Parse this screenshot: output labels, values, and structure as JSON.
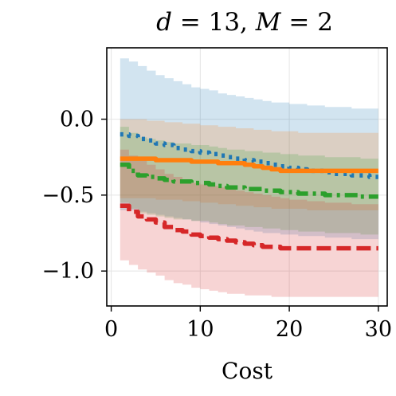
{
  "chart_data": {
    "type": "line",
    "title_parts": {
      "var1": "d",
      "eq1": " = 13, ",
      "var2": "M",
      "eq2": " = 2"
    },
    "xlabel": "Cost",
    "ylabel": "",
    "xlim": [
      -0.5,
      31.0
    ],
    "ylim": [
      -1.23,
      0.47
    ],
    "xticks": [
      0,
      10,
      20,
      30
    ],
    "xtick_labels": [
      "0",
      "10",
      "20",
      "30"
    ],
    "yticks": [
      0.0,
      -0.5,
      -1.0
    ],
    "ytick_labels": [
      "0.0",
      "−0.5",
      "−1.0"
    ],
    "grid": true,
    "legend": "none",
    "series": [
      {
        "color": "#1f77b4",
        "linestyle": "dotted",
        "x": [
          1,
          2,
          3,
          4,
          5,
          6,
          7,
          8,
          9,
          10,
          11,
          12,
          13,
          14,
          15,
          16,
          17,
          18,
          19,
          20,
          21,
          22,
          23,
          24,
          25,
          26,
          27,
          28,
          29,
          30
        ],
        "y": [
          -0.1,
          -0.11,
          -0.13,
          -0.14,
          -0.16,
          -0.17,
          -0.19,
          -0.2,
          -0.21,
          -0.22,
          -0.23,
          -0.24,
          -0.25,
          -0.26,
          -0.27,
          -0.28,
          -0.29,
          -0.3,
          -0.31,
          -0.32,
          -0.33,
          -0.34,
          -0.34,
          -0.35,
          -0.36,
          -0.36,
          -0.37,
          -0.37,
          -0.38,
          -0.38
        ],
        "band_upper": [
          0.4,
          0.38,
          0.35,
          0.32,
          0.29,
          0.27,
          0.25,
          0.23,
          0.21,
          0.2,
          0.19,
          0.17,
          0.16,
          0.15,
          0.14,
          0.13,
          0.12,
          0.11,
          0.11,
          0.1,
          0.1,
          0.09,
          0.09,
          0.08,
          0.08,
          0.08,
          0.07,
          0.07,
          0.07,
          0.06
        ],
        "band_lower": [
          -0.6,
          -0.6,
          -0.61,
          -0.62,
          -0.63,
          -0.64,
          -0.65,
          -0.66,
          -0.67,
          -0.68,
          -0.69,
          -0.7,
          -0.71,
          -0.72,
          -0.73,
          -0.74,
          -0.75,
          -0.75,
          -0.76,
          -0.76,
          -0.77,
          -0.77,
          -0.77,
          -0.78,
          -0.78,
          -0.78,
          -0.79,
          -0.79,
          -0.79,
          -0.79
        ]
      },
      {
        "color": "#ff7f0e",
        "linestyle": "solid",
        "x": [
          1,
          2,
          3,
          4,
          5,
          6,
          7,
          8,
          9,
          10,
          11,
          12,
          13,
          14,
          15,
          16,
          17,
          18,
          19,
          20,
          21,
          22,
          23,
          24,
          25,
          26,
          27,
          28,
          29,
          30
        ],
        "y": [
          -0.26,
          -0.26,
          -0.26,
          -0.26,
          -0.27,
          -0.27,
          -0.27,
          -0.27,
          -0.28,
          -0.28,
          -0.28,
          -0.29,
          -0.29,
          -0.29,
          -0.3,
          -0.31,
          -0.32,
          -0.33,
          -0.34,
          -0.34,
          -0.34,
          -0.34,
          -0.34,
          -0.34,
          -0.34,
          -0.34,
          -0.34,
          -0.34,
          -0.34,
          -0.34
        ],
        "band_upper": [
          0.0,
          0.0,
          0.0,
          -0.01,
          -0.01,
          -0.02,
          -0.02,
          -0.03,
          -0.03,
          -0.04,
          -0.04,
          -0.05,
          -0.05,
          -0.06,
          -0.06,
          -0.07,
          -0.07,
          -0.08,
          -0.08,
          -0.08,
          -0.09,
          -0.09,
          -0.09,
          -0.09,
          -0.09,
          -0.09,
          -0.09,
          -0.09,
          -0.09,
          -0.09
        ],
        "band_lower": [
          -0.52,
          -0.52,
          -0.52,
          -0.52,
          -0.53,
          -0.53,
          -0.53,
          -0.54,
          -0.54,
          -0.55,
          -0.55,
          -0.56,
          -0.56,
          -0.57,
          -0.57,
          -0.58,
          -0.58,
          -0.59,
          -0.59,
          -0.59,
          -0.59,
          -0.6,
          -0.6,
          -0.6,
          -0.6,
          -0.6,
          -0.6,
          -0.6,
          -0.6,
          -0.6
        ]
      },
      {
        "color": "#2ca02c",
        "linestyle": "dashdot",
        "x": [
          1,
          2,
          3,
          4,
          5,
          6,
          7,
          8,
          9,
          10,
          11,
          12,
          13,
          14,
          15,
          16,
          17,
          18,
          19,
          20,
          21,
          22,
          23,
          24,
          25,
          26,
          27,
          28,
          29,
          30
        ],
        "y": [
          -0.3,
          -0.34,
          -0.37,
          -0.38,
          -0.39,
          -0.4,
          -0.41,
          -0.41,
          -0.42,
          -0.42,
          -0.43,
          -0.44,
          -0.45,
          -0.45,
          -0.46,
          -0.46,
          -0.47,
          -0.47,
          -0.48,
          -0.48,
          -0.49,
          -0.49,
          -0.49,
          -0.5,
          -0.5,
          -0.5,
          -0.5,
          -0.51,
          -0.51,
          -0.51
        ],
        "band_upper": [
          -0.05,
          -0.09,
          -0.12,
          -0.13,
          -0.14,
          -0.15,
          -0.16,
          -0.16,
          -0.17,
          -0.17,
          -0.18,
          -0.19,
          -0.2,
          -0.2,
          -0.21,
          -0.21,
          -0.22,
          -0.22,
          -0.23,
          -0.23,
          -0.24,
          -0.24,
          -0.24,
          -0.25,
          -0.25,
          -0.25,
          -0.25,
          -0.26,
          -0.26,
          -0.26
        ],
        "band_lower": [
          -0.55,
          -0.59,
          -0.62,
          -0.63,
          -0.64,
          -0.65,
          -0.66,
          -0.66,
          -0.67,
          -0.67,
          -0.68,
          -0.69,
          -0.7,
          -0.7,
          -0.71,
          -0.71,
          -0.72,
          -0.72,
          -0.73,
          -0.73,
          -0.74,
          -0.74,
          -0.74,
          -0.75,
          -0.75,
          -0.75,
          -0.75,
          -0.76,
          -0.76,
          -0.76
        ]
      },
      {
        "color": "#d62728",
        "linestyle": "dashed",
        "x": [
          1,
          2,
          3,
          4,
          5,
          6,
          7,
          8,
          9,
          10,
          11,
          12,
          13,
          14,
          15,
          16,
          17,
          18,
          19,
          20,
          21,
          22,
          23,
          24,
          25,
          26,
          27,
          28,
          29,
          30
        ],
        "y": [
          -0.57,
          -0.61,
          -0.64,
          -0.66,
          -0.68,
          -0.71,
          -0.73,
          -0.74,
          -0.76,
          -0.77,
          -0.78,
          -0.79,
          -0.8,
          -0.81,
          -0.82,
          -0.83,
          -0.84,
          -0.84,
          -0.85,
          -0.85,
          -0.85,
          -0.85,
          -0.85,
          -0.85,
          -0.85,
          -0.85,
          -0.85,
          -0.85,
          -0.85,
          -0.85
        ],
        "band_upper": [
          -0.2,
          -0.24,
          -0.27,
          -0.3,
          -0.33,
          -0.36,
          -0.38,
          -0.4,
          -0.42,
          -0.43,
          -0.44,
          -0.45,
          -0.46,
          -0.47,
          -0.48,
          -0.49,
          -0.5,
          -0.51,
          -0.52,
          -0.53,
          -0.53,
          -0.54,
          -0.54,
          -0.55,
          -0.55,
          -0.55,
          -0.56,
          -0.56,
          -0.56,
          -0.56
        ],
        "band_lower": [
          -0.93,
          -0.96,
          -0.99,
          -1.01,
          -1.03,
          -1.06,
          -1.08,
          -1.09,
          -1.11,
          -1.12,
          -1.13,
          -1.14,
          -1.15,
          -1.15,
          -1.16,
          -1.16,
          -1.16,
          -1.17,
          -1.17,
          -1.17,
          -1.17,
          -1.17,
          -1.17,
          -1.17,
          -1.17,
          -1.17,
          -1.17,
          -1.17,
          -1.17,
          -1.17
        ]
      }
    ]
  }
}
